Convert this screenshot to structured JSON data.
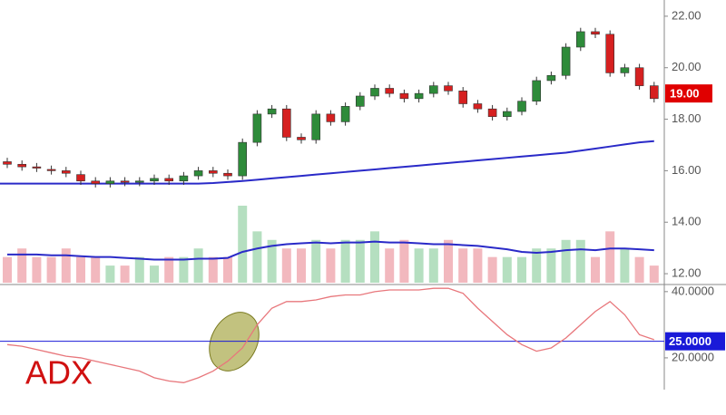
{
  "chart_data": [
    {
      "type": "candlestick",
      "open": [
        16.35,
        16.25,
        16.15,
        16.05,
        16.0,
        15.85,
        15.6,
        15.5,
        15.6,
        15.55,
        15.6,
        15.7,
        15.6,
        15.8,
        16.0,
        15.9,
        15.8,
        17.1,
        18.2,
        18.4,
        17.3,
        17.2,
        18.2,
        17.9,
        18.5,
        18.9,
        19.2,
        19.0,
        18.8,
        19.0,
        19.3,
        19.1,
        18.6,
        18.4,
        18.1,
        18.3,
        18.7,
        19.5,
        19.7,
        20.8,
        21.4,
        21.3,
        19.8,
        20.0,
        19.3
      ],
      "high": [
        16.5,
        16.4,
        16.3,
        16.2,
        16.15,
        16.0,
        15.75,
        15.75,
        15.75,
        15.75,
        15.85,
        15.85,
        15.95,
        16.15,
        16.15,
        16.05,
        17.25,
        18.35,
        18.55,
        18.55,
        17.45,
        18.35,
        18.35,
        18.65,
        19.05,
        19.35,
        19.35,
        19.15,
        19.15,
        19.45,
        19.45,
        19.25,
        18.75,
        18.55,
        18.45,
        18.85,
        19.65,
        19.85,
        20.95,
        21.55,
        21.55,
        21.45,
        20.15,
        20.15,
        19.45
      ],
      "low": [
        16.1,
        16.0,
        15.95,
        15.85,
        15.75,
        15.45,
        15.35,
        15.35,
        15.4,
        15.4,
        15.45,
        15.45,
        15.45,
        15.65,
        15.75,
        15.65,
        15.65,
        16.95,
        18.05,
        17.15,
        17.05,
        17.05,
        17.75,
        17.75,
        18.35,
        18.75,
        18.85,
        18.65,
        18.65,
        18.85,
        18.95,
        18.45,
        18.25,
        17.95,
        17.95,
        18.15,
        18.55,
        19.35,
        19.55,
        20.65,
        21.15,
        19.65,
        19.65,
        19.15,
        18.65
      ],
      "close": [
        16.25,
        16.15,
        16.1,
        16.0,
        15.9,
        15.6,
        15.5,
        15.6,
        15.55,
        15.6,
        15.7,
        15.6,
        15.8,
        16.0,
        15.9,
        15.8,
        17.1,
        18.2,
        18.4,
        17.3,
        17.2,
        18.2,
        17.9,
        18.5,
        18.9,
        19.2,
        19.0,
        18.8,
        19.0,
        19.3,
        19.1,
        18.6,
        18.4,
        18.1,
        18.3,
        18.7,
        19.5,
        19.7,
        20.8,
        21.4,
        21.3,
        19.8,
        20.0,
        19.3,
        18.8
      ],
      "moving_average": [
        15.5,
        15.5,
        15.5,
        15.5,
        15.5,
        15.5,
        15.5,
        15.5,
        15.5,
        15.5,
        15.5,
        15.5,
        15.5,
        15.5,
        15.52,
        15.56,
        15.6,
        15.65,
        15.7,
        15.75,
        15.8,
        15.85,
        15.9,
        15.95,
        16.0,
        16.05,
        16.1,
        16.15,
        16.2,
        16.25,
        16.3,
        16.35,
        16.4,
        16.45,
        16.5,
        16.55,
        16.6,
        16.65,
        16.7,
        16.78,
        16.86,
        16.94,
        17.02,
        17.1,
        17.15
      ],
      "volume": [
        3,
        4,
        3,
        3,
        4,
        3,
        3,
        2,
        2,
        3,
        2,
        3,
        3,
        4,
        3,
        3,
        9,
        6,
        5,
        4,
        4,
        5,
        4,
        5,
        5,
        6,
        4,
        5,
        4,
        4,
        5,
        4,
        4,
        3,
        3,
        3,
        4,
        4,
        5,
        5,
        3,
        6,
        4,
        3,
        2
      ],
      "volume_average": [
        3.3,
        3.3,
        3.3,
        3.2,
        3.2,
        3.1,
        3.0,
        3.0,
        2.9,
        2.8,
        2.7,
        2.7,
        2.7,
        2.8,
        2.8,
        2.9,
        3.6,
        4.0,
        4.3,
        4.5,
        4.6,
        4.7,
        4.6,
        4.7,
        4.7,
        4.8,
        4.7,
        4.7,
        4.6,
        4.5,
        4.5,
        4.4,
        4.3,
        4.1,
        3.9,
        3.6,
        3.5,
        3.6,
        3.8,
        3.9,
        3.8,
        4.0,
        4.0,
        3.9,
        3.8
      ],
      "up_color": "#2e8b3a",
      "down_color": "#d62020",
      "ma_color": "#2a2ac8",
      "volume_up_color": "#b5dfc0",
      "volume_down_color": "#f2b8be",
      "ylim": [
        11.65,
        22.63
      ],
      "yticks": [
        {
          "value": 12,
          "label": "12.00"
        },
        {
          "value": 14,
          "label": "14.00"
        },
        {
          "value": 16,
          "label": "16.00"
        },
        {
          "value": 18,
          "label": "18.00"
        },
        {
          "value": 20,
          "label": "20.00"
        },
        {
          "value": 22,
          "label": "22.00"
        }
      ],
      "price_marker": {
        "value": 19,
        "label": "19.00",
        "color": "#e00000"
      }
    },
    {
      "type": "line",
      "title": "ADX",
      "color": "#e8777c",
      "values": [
        24,
        23.5,
        22.5,
        21.5,
        20.5,
        20,
        19,
        18,
        17,
        16,
        14,
        13,
        12.5,
        14,
        16,
        19,
        23,
        30,
        35,
        37,
        37,
        37.5,
        38.5,
        39,
        39,
        40,
        40.5,
        40.5,
        40.5,
        41,
        41,
        39.5,
        35,
        31,
        27,
        24,
        22,
        23,
        26,
        30,
        34,
        37,
        33,
        27,
        25.5
      ],
      "ylim": [
        10.4,
        41.6
      ],
      "yticks": [
        {
          "value": 20,
          "label": "20.0000"
        },
        {
          "value": 40,
          "label": "40.0000"
        }
      ],
      "marker": {
        "value": 25,
        "label": "25.0000",
        "color": "#1a1ad8"
      }
    }
  ]
}
